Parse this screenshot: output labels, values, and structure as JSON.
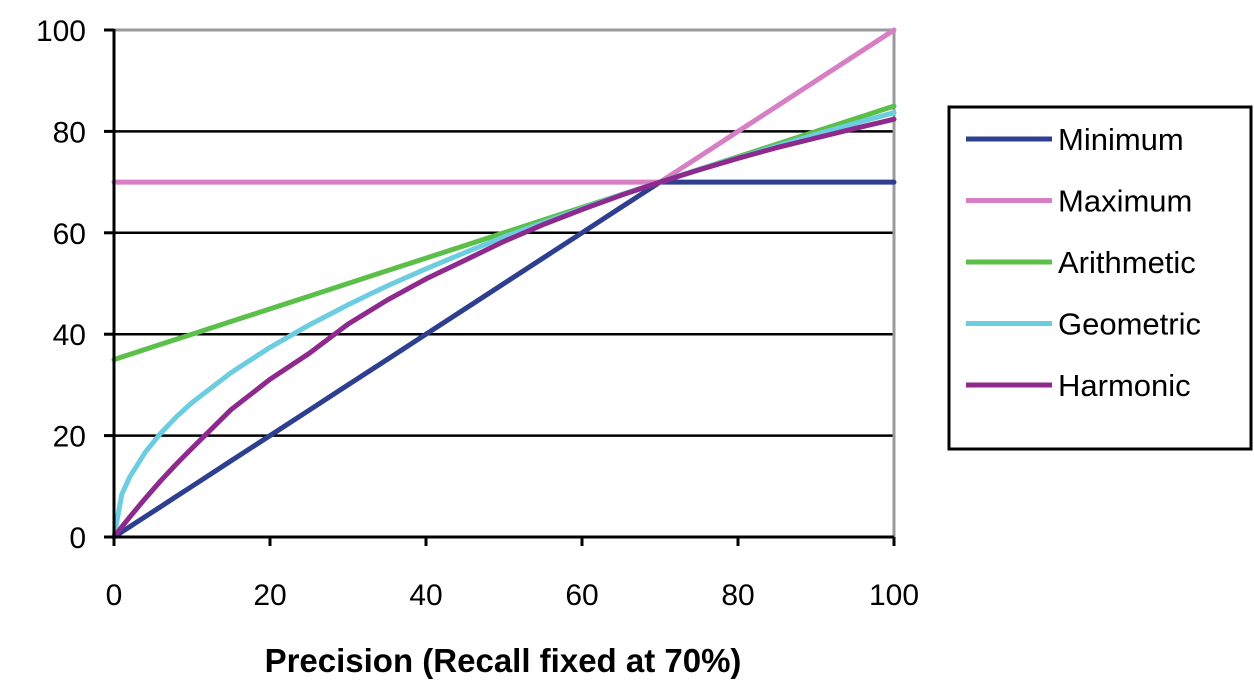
{
  "chart_data": {
    "type": "line",
    "title": "",
    "xlabel": "Precision (Recall fixed at 70%)",
    "ylabel": "",
    "xlim": [
      0,
      100
    ],
    "ylim": [
      0,
      100
    ],
    "x_ticks": [
      0,
      20,
      40,
      60,
      80,
      100
    ],
    "y_ticks": [
      0,
      20,
      40,
      60,
      80,
      100
    ],
    "x_tick_labels": [
      "0",
      "20",
      "40",
      "60",
      "80",
      "100"
    ],
    "y_tick_labels": [
      "0",
      "20",
      "40",
      "60",
      "80",
      "100"
    ],
    "grid": "horizontal",
    "legend_position": "right",
    "x": [
      0,
      1,
      2,
      4,
      6,
      8,
      10,
      15,
      20,
      25,
      30,
      35,
      40,
      45,
      50,
      55,
      60,
      65,
      70,
      75,
      80,
      85,
      90,
      95,
      100
    ],
    "series": [
      {
        "name": "Minimum",
        "color": "#2e3f8f",
        "values": [
          0,
          1,
          2,
          4,
          6,
          8,
          10,
          15,
          20,
          25,
          30,
          35,
          40,
          45,
          50,
          55,
          60,
          65,
          70,
          70,
          70,
          70,
          70,
          70,
          70
        ]
      },
      {
        "name": "Maximum",
        "color": "#d77fc4",
        "values": [
          70,
          70,
          70,
          70,
          70,
          70,
          70,
          70,
          70,
          70,
          70,
          70,
          70,
          70,
          70,
          70,
          70,
          70,
          70,
          75,
          80,
          85,
          90,
          95,
          100
        ]
      },
      {
        "name": "Arithmetic",
        "color": "#5cbf4a",
        "values": [
          35,
          35.5,
          36,
          37,
          38,
          39,
          40,
          42.5,
          45,
          47.5,
          50,
          52.5,
          55,
          57.5,
          60,
          62.5,
          65,
          67.5,
          70,
          72.5,
          75,
          77.5,
          80,
          82.5,
          85
        ]
      },
      {
        "name": "Geometric",
        "color": "#6ccde0",
        "values": [
          0,
          8.4,
          11.8,
          16.7,
          20.5,
          23.7,
          26.5,
          32.4,
          37.4,
          41.8,
          45.8,
          49.5,
          52.9,
          56.1,
          59.2,
          62,
          64.8,
          67.5,
          70,
          72.5,
          74.8,
          77.1,
          79.4,
          81.6,
          83.7
        ]
      },
      {
        "name": "Harmonic",
        "color": "#8e2a8e",
        "values": [
          0,
          2,
          3.9,
          7.6,
          11.1,
          14.4,
          17.5,
          25.1,
          31.1,
          36.2,
          42,
          46.7,
          50.9,
          54.6,
          58.3,
          61.6,
          64.6,
          67.4,
          70,
          72.4,
          74.7,
          76.8,
          78.7,
          80.6,
          82.4
        ]
      }
    ]
  }
}
